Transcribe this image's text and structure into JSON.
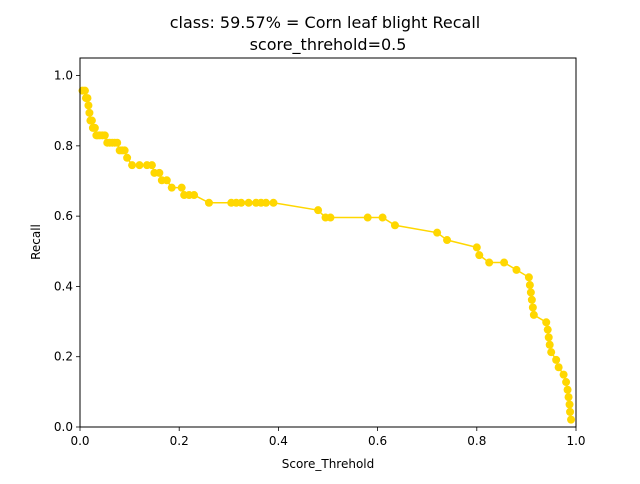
{
  "chart_data": {
    "type": "line",
    "title": "class: 59.57% = Corn leaf blight Recall",
    "subtitle": "score_threhold=0.5",
    "xlabel": "Score_Threhold",
    "ylabel": "Recall",
    "xlim": [
      0.0,
      1.0
    ],
    "ylim": [
      0.0,
      1.05
    ],
    "xticks": [
      "0.0",
      "0.2",
      "0.4",
      "0.6",
      "0.8",
      "1.0"
    ],
    "yticks": [
      "0.0",
      "0.2",
      "0.4",
      "0.6",
      "0.8",
      "1.0"
    ],
    "grid": false,
    "legend": "none",
    "color": "#ffd700",
    "marker": "circle",
    "series": [
      {
        "points": [
          [
            0.005,
            0.957
          ],
          [
            0.01,
            0.957
          ],
          [
            0.012,
            0.936
          ],
          [
            0.015,
            0.936
          ],
          [
            0.017,
            0.915
          ],
          [
            0.019,
            0.894
          ],
          [
            0.021,
            0.872
          ],
          [
            0.024,
            0.872
          ],
          [
            0.026,
            0.851
          ],
          [
            0.03,
            0.851
          ],
          [
            0.033,
            0.83
          ],
          [
            0.036,
            0.83
          ],
          [
            0.04,
            0.83
          ],
          [
            0.045,
            0.83
          ],
          [
            0.05,
            0.83
          ],
          [
            0.055,
            0.809
          ],
          [
            0.06,
            0.809
          ],
          [
            0.065,
            0.809
          ],
          [
            0.07,
            0.809
          ],
          [
            0.075,
            0.809
          ],
          [
            0.08,
            0.787
          ],
          [
            0.085,
            0.787
          ],
          [
            0.09,
            0.787
          ],
          [
            0.095,
            0.766
          ],
          [
            0.105,
            0.745
          ],
          [
            0.12,
            0.745
          ],
          [
            0.135,
            0.745
          ],
          [
            0.145,
            0.745
          ],
          [
            0.15,
            0.723
          ],
          [
            0.16,
            0.723
          ],
          [
            0.165,
            0.702
          ],
          [
            0.175,
            0.702
          ],
          [
            0.185,
            0.681
          ],
          [
            0.205,
            0.681
          ],
          [
            0.21,
            0.66
          ],
          [
            0.22,
            0.66
          ],
          [
            0.23,
            0.66
          ],
          [
            0.26,
            0.638
          ],
          [
            0.305,
            0.638
          ],
          [
            0.315,
            0.638
          ],
          [
            0.325,
            0.638
          ],
          [
            0.34,
            0.638
          ],
          [
            0.355,
            0.638
          ],
          [
            0.365,
            0.638
          ],
          [
            0.375,
            0.638
          ],
          [
            0.39,
            0.638
          ],
          [
            0.48,
            0.617
          ],
          [
            0.495,
            0.596
          ],
          [
            0.505,
            0.596
          ],
          [
            0.58,
            0.596
          ],
          [
            0.61,
            0.596
          ],
          [
            0.635,
            0.574
          ],
          [
            0.72,
            0.553
          ],
          [
            0.74,
            0.532
          ],
          [
            0.8,
            0.511
          ],
          [
            0.805,
            0.489
          ],
          [
            0.825,
            0.468
          ],
          [
            0.855,
            0.468
          ],
          [
            0.88,
            0.447
          ],
          [
            0.905,
            0.426
          ],
          [
            0.907,
            0.404
          ],
          [
            0.909,
            0.383
          ],
          [
            0.911,
            0.362
          ],
          [
            0.913,
            0.34
          ],
          [
            0.915,
            0.319
          ],
          [
            0.94,
            0.298
          ],
          [
            0.943,
            0.277
          ],
          [
            0.945,
            0.255
          ],
          [
            0.947,
            0.234
          ],
          [
            0.95,
            0.213
          ],
          [
            0.96,
            0.191
          ],
          [
            0.965,
            0.17
          ],
          [
            0.975,
            0.149
          ],
          [
            0.98,
            0.128
          ],
          [
            0.983,
            0.106
          ],
          [
            0.985,
            0.085
          ],
          [
            0.987,
            0.064
          ],
          [
            0.988,
            0.043
          ],
          [
            0.99,
            0.021
          ]
        ]
      }
    ]
  }
}
